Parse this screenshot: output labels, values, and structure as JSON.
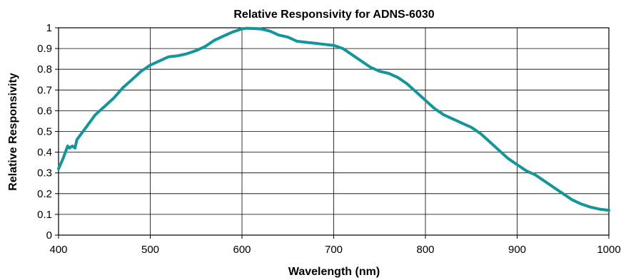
{
  "chart_data": {
    "type": "line",
    "title": "Relative Responsivity for ADNS-6030",
    "xlabel": "Wavelength (nm)",
    "ylabel": "Relative Responsivity",
    "xlim": [
      400,
      1000
    ],
    "ylim": [
      0,
      1
    ],
    "x_ticks": [
      "400",
      "500",
      "600",
      "700",
      "800",
      "900",
      "1000"
    ],
    "y_ticks": [
      "0",
      "0.1",
      "0.2",
      "0.3",
      "0.4",
      "0.5",
      "0.6",
      "0.7",
      "0.8",
      "0.9",
      "1"
    ],
    "grid": true,
    "line_color": "#12969b",
    "series": [
      {
        "x": [
          400,
          405,
          410,
          412,
          415,
          418,
          420,
          430,
          440,
          450,
          460,
          470,
          480,
          490,
          500,
          510,
          520,
          530,
          540,
          550,
          560,
          570,
          580,
          590,
          600,
          605,
          610,
          620,
          630,
          640,
          650,
          660,
          670,
          680,
          690,
          700,
          710,
          720,
          730,
          740,
          750,
          760,
          770,
          780,
          790,
          800,
          810,
          820,
          830,
          840,
          850,
          860,
          870,
          880,
          890,
          900,
          910,
          920,
          930,
          940,
          950,
          960,
          970,
          980,
          990,
          1000
        ],
        "y": [
          0.32,
          0.37,
          0.43,
          0.42,
          0.43,
          0.42,
          0.46,
          0.52,
          0.58,
          0.62,
          0.66,
          0.71,
          0.75,
          0.79,
          0.82,
          0.84,
          0.86,
          0.865,
          0.875,
          0.89,
          0.91,
          0.94,
          0.96,
          0.98,
          0.995,
          0.998,
          0.997,
          0.995,
          0.985,
          0.965,
          0.955,
          0.935,
          0.93,
          0.925,
          0.92,
          0.915,
          0.9,
          0.87,
          0.84,
          0.81,
          0.79,
          0.78,
          0.76,
          0.73,
          0.69,
          0.65,
          0.61,
          0.58,
          0.56,
          0.54,
          0.52,
          0.49,
          0.45,
          0.41,
          0.37,
          0.34,
          0.31,
          0.29,
          0.26,
          0.23,
          0.2,
          0.17,
          0.15,
          0.135,
          0.125,
          0.12
        ]
      }
    ]
  }
}
